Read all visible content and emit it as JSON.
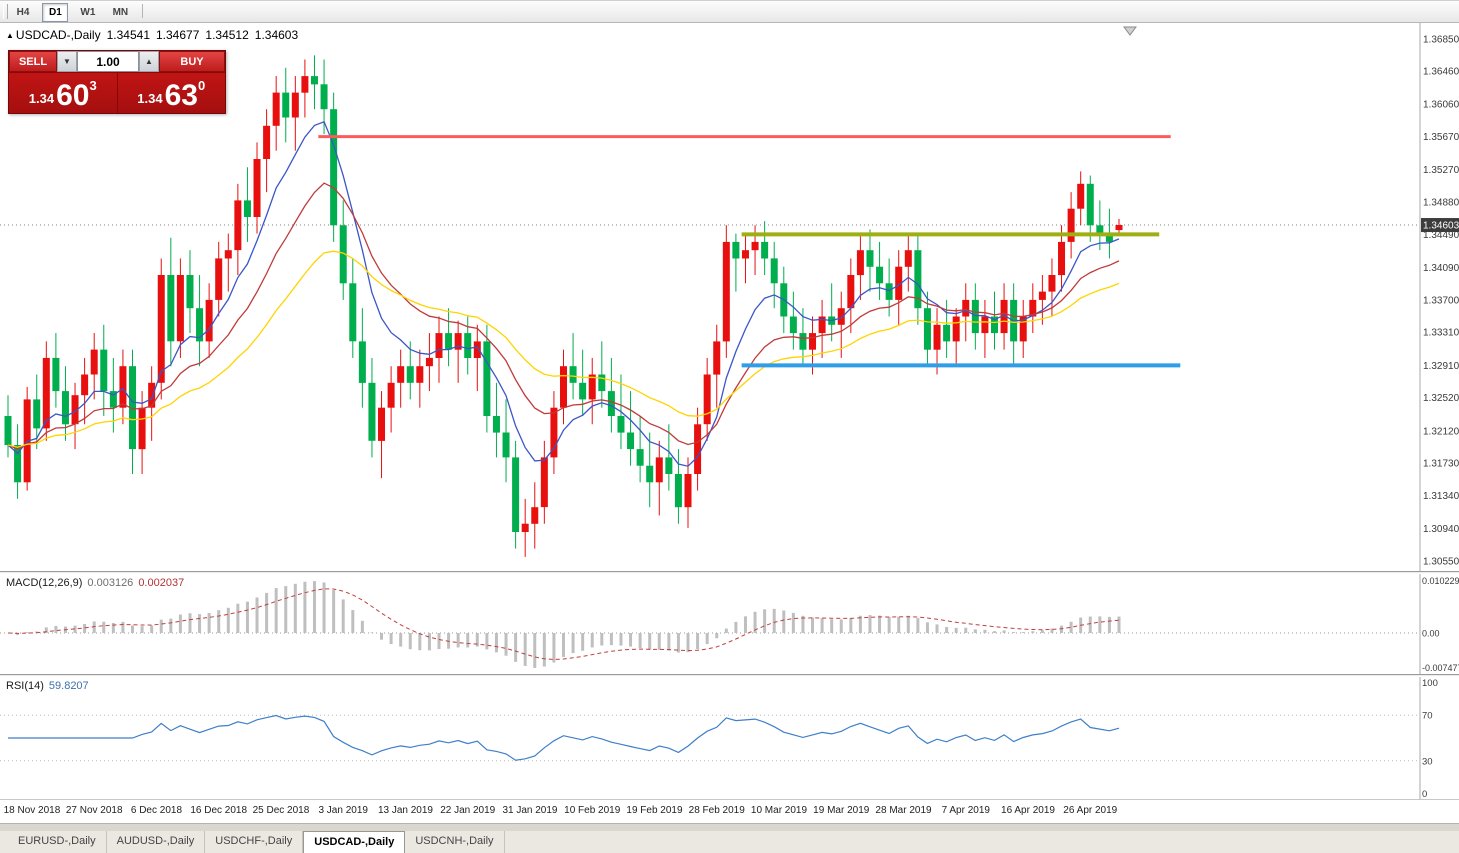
{
  "toolbar": {
    "periods": [
      {
        "label": "H4",
        "active": false
      },
      {
        "label": "D1",
        "active": true
      },
      {
        "label": "W1",
        "active": false
      },
      {
        "label": "MN",
        "active": false
      }
    ]
  },
  "icons": {
    "symbol_marker": "▲",
    "spin_down": "▼",
    "spin_up": "▲"
  },
  "header": {
    "symbol": "USDCAD-,Daily",
    "open": "1.34541",
    "high": "1.34677",
    "low": "1.34512",
    "close": "1.34603"
  },
  "trade_panel": {
    "sell_label": "SELL",
    "buy_label": "BUY",
    "lot_value": "1.00",
    "bid": {
      "big_prefix": "1.34",
      "big": "60",
      "sup": "3"
    },
    "ask": {
      "big_prefix": "1.34",
      "big": "63",
      "sup": "0"
    }
  },
  "price_axis": {
    "labels": [
      "1.36850",
      "1.36460",
      "1.36060",
      "1.35670",
      "1.35270",
      "1.34880",
      "1.34490",
      "1.34090",
      "1.33700",
      "1.33310",
      "1.32910",
      "1.32520",
      "1.32120",
      "1.31730",
      "1.31340",
      "1.30940",
      "1.30550"
    ],
    "current": "1.34603",
    "max": 1.3704,
    "min": 1.3043
  },
  "macd_panel": {
    "label": "MACD(12,26,9)",
    "value1": "0.003126",
    "value2": "0.002037",
    "axis_top": "0.010229",
    "axis_zero": "0.00",
    "axis_bottom": "-0.007477"
  },
  "rsi_panel": {
    "label": "RSI(14)",
    "value": "59.8207",
    "axis": [
      "100",
      "70",
      "30",
      "0"
    ],
    "levels": [
      70,
      30
    ]
  },
  "date_axis": {
    "labels": [
      "18 Nov 2018",
      "27 Nov 2018",
      "6 Dec 2018",
      "16 Dec 2018",
      "25 Dec 2018",
      "3 Jan 2019",
      "13 Jan 2019",
      "22 Jan 2019",
      "31 Jan 2019",
      "10 Feb 2019",
      "19 Feb 2019",
      "28 Feb 2019",
      "10 Mar 2019",
      "19 Mar 2019",
      "28 Mar 2019",
      "7 Apr 2019",
      "16 Apr 2019",
      "26 Apr 2019"
    ]
  },
  "tabs": [
    {
      "label": "EURUSD-,Daily",
      "active": false
    },
    {
      "label": "AUDUSD-,Daily",
      "active": false
    },
    {
      "label": "USDCHF-,Daily",
      "active": false
    },
    {
      "label": "USDCAD-,Daily",
      "active": true
    },
    {
      "label": "USDCNH-,Daily",
      "active": false
    }
  ],
  "chart_data": {
    "type": "candlestick",
    "symbol": "USDCAD",
    "timeframe": "Daily",
    "up_color": "#e80f0f",
    "down_color": "#00ae4e",
    "rsi_color": "#3f7fca",
    "macd_histogram_color": "#bfbfbf",
    "macd_signal_color": "#c04040",
    "current_price": 1.34603,
    "ohlc_current": {
      "open": 1.34541,
      "high": 1.34677,
      "low": 1.34512,
      "close": 1.34603
    },
    "moving_averages": [
      {
        "period": 8,
        "color": "#3a56c8"
      },
      {
        "period": 17,
        "color": "#c03a3a"
      },
      {
        "period": 32,
        "color": "#ffd400"
      }
    ],
    "hlines": [
      {
        "name": "resistance-line",
        "price": 1.3567,
        "color": "#ff5a5a",
        "width": 3,
        "from": 32.4,
        "to": 121.4
      },
      {
        "name": "supply-level-line",
        "price": 1.3449,
        "color": "#9fae10",
        "width": 4,
        "from": 76.6,
        "to": 120.2
      },
      {
        "name": "support-line",
        "price": 1.3291,
        "color": "#2f9ee8",
        "width": 4,
        "from": 76.6,
        "to": 122.4
      }
    ],
    "indicators": {
      "macd": {
        "fast": 12,
        "slow": 26,
        "signal": 9
      },
      "rsi": {
        "period": 14
      }
    },
    "candles": [
      [
        1.323,
        1.3255,
        1.318,
        1.3195
      ],
      [
        1.3195,
        1.322,
        1.313,
        1.315
      ],
      [
        1.315,
        1.3265,
        1.314,
        1.325
      ],
      [
        1.325,
        1.328,
        1.319,
        1.3215
      ],
      [
        1.3215,
        1.332,
        1.32,
        1.33
      ],
      [
        1.33,
        1.333,
        1.324,
        1.326
      ],
      [
        1.326,
        1.329,
        1.32,
        1.322
      ],
      [
        1.322,
        1.327,
        1.319,
        1.3255
      ],
      [
        1.3255,
        1.33,
        1.322,
        1.328
      ],
      [
        1.328,
        1.333,
        1.325,
        1.331
      ],
      [
        1.331,
        1.334,
        1.323,
        1.326
      ],
      [
        1.326,
        1.33,
        1.321,
        1.324
      ],
      [
        1.324,
        1.331,
        1.322,
        1.329
      ],
      [
        1.329,
        1.331,
        1.316,
        1.319
      ],
      [
        1.319,
        1.326,
        1.316,
        1.324
      ],
      [
        1.324,
        1.329,
        1.32,
        1.327
      ],
      [
        1.327,
        1.342,
        1.325,
        1.34
      ],
      [
        1.34,
        1.3445,
        1.329,
        1.332
      ],
      [
        1.332,
        1.342,
        1.33,
        1.34
      ],
      [
        1.34,
        1.343,
        1.333,
        1.336
      ],
      [
        1.336,
        1.34,
        1.329,
        1.332
      ],
      [
        1.332,
        1.339,
        1.33,
        1.337
      ],
      [
        1.337,
        1.344,
        1.335,
        1.342
      ],
      [
        1.342,
        1.345,
        1.338,
        1.343
      ],
      [
        1.343,
        1.351,
        1.34,
        1.349
      ],
      [
        1.349,
        1.353,
        1.344,
        1.347
      ],
      [
        1.347,
        1.356,
        1.345,
        1.354
      ],
      [
        1.354,
        1.36,
        1.35,
        1.358
      ],
      [
        1.358,
        1.364,
        1.355,
        1.362
      ],
      [
        1.362,
        1.365,
        1.356,
        1.359
      ],
      [
        1.359,
        1.364,
        1.355,
        1.362
      ],
      [
        1.362,
        1.366,
        1.359,
        1.364
      ],
      [
        1.364,
        1.3665,
        1.36,
        1.363
      ],
      [
        1.363,
        1.366,
        1.357,
        1.36
      ],
      [
        1.36,
        1.362,
        1.344,
        1.346
      ],
      [
        1.346,
        1.349,
        1.337,
        1.339
      ],
      [
        1.339,
        1.342,
        1.33,
        1.332
      ],
      [
        1.332,
        1.336,
        1.324,
        1.327
      ],
      [
        1.327,
        1.33,
        1.318,
        1.32
      ],
      [
        1.32,
        1.326,
        1.3155,
        1.324
      ],
      [
        1.324,
        1.329,
        1.321,
        1.327
      ],
      [
        1.327,
        1.331,
        1.324,
        1.329
      ],
      [
        1.329,
        1.332,
        1.325,
        1.327
      ],
      [
        1.327,
        1.331,
        1.324,
        1.329
      ],
      [
        1.329,
        1.333,
        1.326,
        1.33
      ],
      [
        1.33,
        1.335,
        1.327,
        1.333
      ],
      [
        1.333,
        1.336,
        1.329,
        1.331
      ],
      [
        1.331,
        1.3345,
        1.327,
        1.333
      ],
      [
        1.333,
        1.335,
        1.328,
        1.33
      ],
      [
        1.33,
        1.334,
        1.326,
        1.332
      ],
      [
        1.332,
        1.334,
        1.321,
        1.323
      ],
      [
        1.323,
        1.327,
        1.318,
        1.321
      ],
      [
        1.321,
        1.325,
        1.315,
        1.318
      ],
      [
        1.318,
        1.32,
        1.307,
        1.309
      ],
      [
        1.309,
        1.313,
        1.306,
        1.31
      ],
      [
        1.31,
        1.315,
        1.307,
        1.312
      ],
      [
        1.312,
        1.32,
        1.31,
        1.318
      ],
      [
        1.318,
        1.326,
        1.316,
        1.324
      ],
      [
        1.324,
        1.331,
        1.322,
        1.329
      ],
      [
        1.329,
        1.333,
        1.325,
        1.327
      ],
      [
        1.327,
        1.331,
        1.323,
        1.325
      ],
      [
        1.325,
        1.33,
        1.322,
        1.328
      ],
      [
        1.328,
        1.332,
        1.324,
        1.326
      ],
      [
        1.326,
        1.33,
        1.321,
        1.323
      ],
      [
        1.323,
        1.328,
        1.319,
        1.321
      ],
      [
        1.321,
        1.326,
        1.317,
        1.319
      ],
      [
        1.319,
        1.323,
        1.315,
        1.317
      ],
      [
        1.317,
        1.321,
        1.312,
        1.315
      ],
      [
        1.315,
        1.32,
        1.311,
        1.318
      ],
      [
        1.318,
        1.322,
        1.314,
        1.316
      ],
      [
        1.316,
        1.319,
        1.31,
        1.312
      ],
      [
        1.312,
        1.318,
        1.3095,
        1.316
      ],
      [
        1.316,
        1.324,
        1.314,
        1.322
      ],
      [
        1.322,
        1.33,
        1.32,
        1.328
      ],
      [
        1.328,
        1.334,
        1.324,
        1.332
      ],
      [
        1.332,
        1.346,
        1.33,
        1.344
      ],
      [
        1.344,
        1.345,
        1.338,
        1.342
      ],
      [
        1.342,
        1.345,
        1.339,
        1.343
      ],
      [
        1.343,
        1.346,
        1.34,
        1.344
      ],
      [
        1.344,
        1.3465,
        1.34,
        1.342
      ],
      [
        1.342,
        1.344,
        1.336,
        1.339
      ],
      [
        1.339,
        1.341,
        1.333,
        1.335
      ],
      [
        1.335,
        1.338,
        1.331,
        1.333
      ],
      [
        1.333,
        1.336,
        1.329,
        1.331
      ],
      [
        1.331,
        1.335,
        1.328,
        1.333
      ],
      [
        1.333,
        1.337,
        1.33,
        1.335
      ],
      [
        1.335,
        1.339,
        1.332,
        1.334
      ],
      [
        1.334,
        1.338,
        1.33,
        1.336
      ],
      [
        1.336,
        1.342,
        1.333,
        1.34
      ],
      [
        1.34,
        1.345,
        1.337,
        1.343
      ],
      [
        1.343,
        1.3455,
        1.338,
        1.341
      ],
      [
        1.341,
        1.344,
        1.337,
        1.339
      ],
      [
        1.339,
        1.342,
        1.335,
        1.337
      ],
      [
        1.337,
        1.343,
        1.334,
        1.341
      ],
      [
        1.341,
        1.345,
        1.338,
        1.343
      ],
      [
        1.343,
        1.345,
        1.334,
        1.336
      ],
      [
        1.336,
        1.338,
        1.329,
        1.331
      ],
      [
        1.331,
        1.336,
        1.328,
        1.334
      ],
      [
        1.334,
        1.337,
        1.33,
        1.332
      ],
      [
        1.332,
        1.336,
        1.329,
        1.335
      ],
      [
        1.335,
        1.339,
        1.332,
        1.337
      ],
      [
        1.337,
        1.339,
        1.331,
        1.333
      ],
      [
        1.333,
        1.337,
        1.33,
        1.335
      ],
      [
        1.335,
        1.338,
        1.331,
        1.333
      ],
      [
        1.333,
        1.339,
        1.331,
        1.337
      ],
      [
        1.337,
        1.339,
        1.329,
        1.332
      ],
      [
        1.332,
        1.337,
        1.33,
        1.335
      ],
      [
        1.335,
        1.339,
        1.333,
        1.337
      ],
      [
        1.337,
        1.34,
        1.334,
        1.338
      ],
      [
        1.338,
        1.342,
        1.335,
        1.34
      ],
      [
        1.34,
        1.346,
        1.338,
        1.344
      ],
      [
        1.344,
        1.35,
        1.342,
        1.348
      ],
      [
        1.348,
        1.3525,
        1.346,
        1.351
      ],
      [
        1.351,
        1.352,
        1.344,
        1.346
      ],
      [
        1.346,
        1.349,
        1.343,
        1.345
      ],
      [
        1.345,
        1.348,
        1.342,
        1.344
      ],
      [
        1.34541,
        1.34677,
        1.34512,
        1.34603
      ]
    ]
  }
}
